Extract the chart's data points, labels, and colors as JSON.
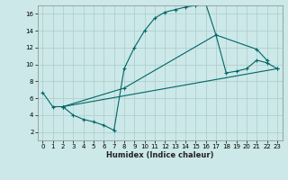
{
  "xlabel": "Humidex (Indice chaleur)",
  "bg_color": "#cce8e8",
  "grid_color": "#aacccc",
  "line_color": "#006666",
  "xlim": [
    -0.5,
    23.5
  ],
  "ylim": [
    1,
    17
  ],
  "xticks": [
    0,
    1,
    2,
    3,
    4,
    5,
    6,
    7,
    8,
    9,
    10,
    11,
    12,
    13,
    14,
    15,
    16,
    17,
    18,
    19,
    20,
    21,
    22,
    23
  ],
  "yticks": [
    2,
    4,
    6,
    8,
    10,
    12,
    14,
    16
  ],
  "curve1_x": [
    0,
    1,
    2,
    3,
    4,
    5,
    6,
    7,
    8,
    9,
    10,
    11,
    12,
    13,
    14,
    15,
    16,
    17,
    21,
    22
  ],
  "curve1_y": [
    6.7,
    5.0,
    5.0,
    4.0,
    3.5,
    3.2,
    2.8,
    2.2,
    9.5,
    12.0,
    14.0,
    15.5,
    16.2,
    16.5,
    16.8,
    17.0,
    17.2,
    13.5,
    11.8,
    10.5
  ],
  "curve2_x": [
    2,
    8,
    17,
    18,
    19,
    20,
    21,
    22,
    23
  ],
  "curve2_y": [
    5.0,
    7.2,
    13.5,
    9.0,
    9.2,
    9.5,
    10.5,
    10.2,
    9.5
  ],
  "curve3_x": [
    2,
    23
  ],
  "curve3_y": [
    5.0,
    9.5
  ]
}
